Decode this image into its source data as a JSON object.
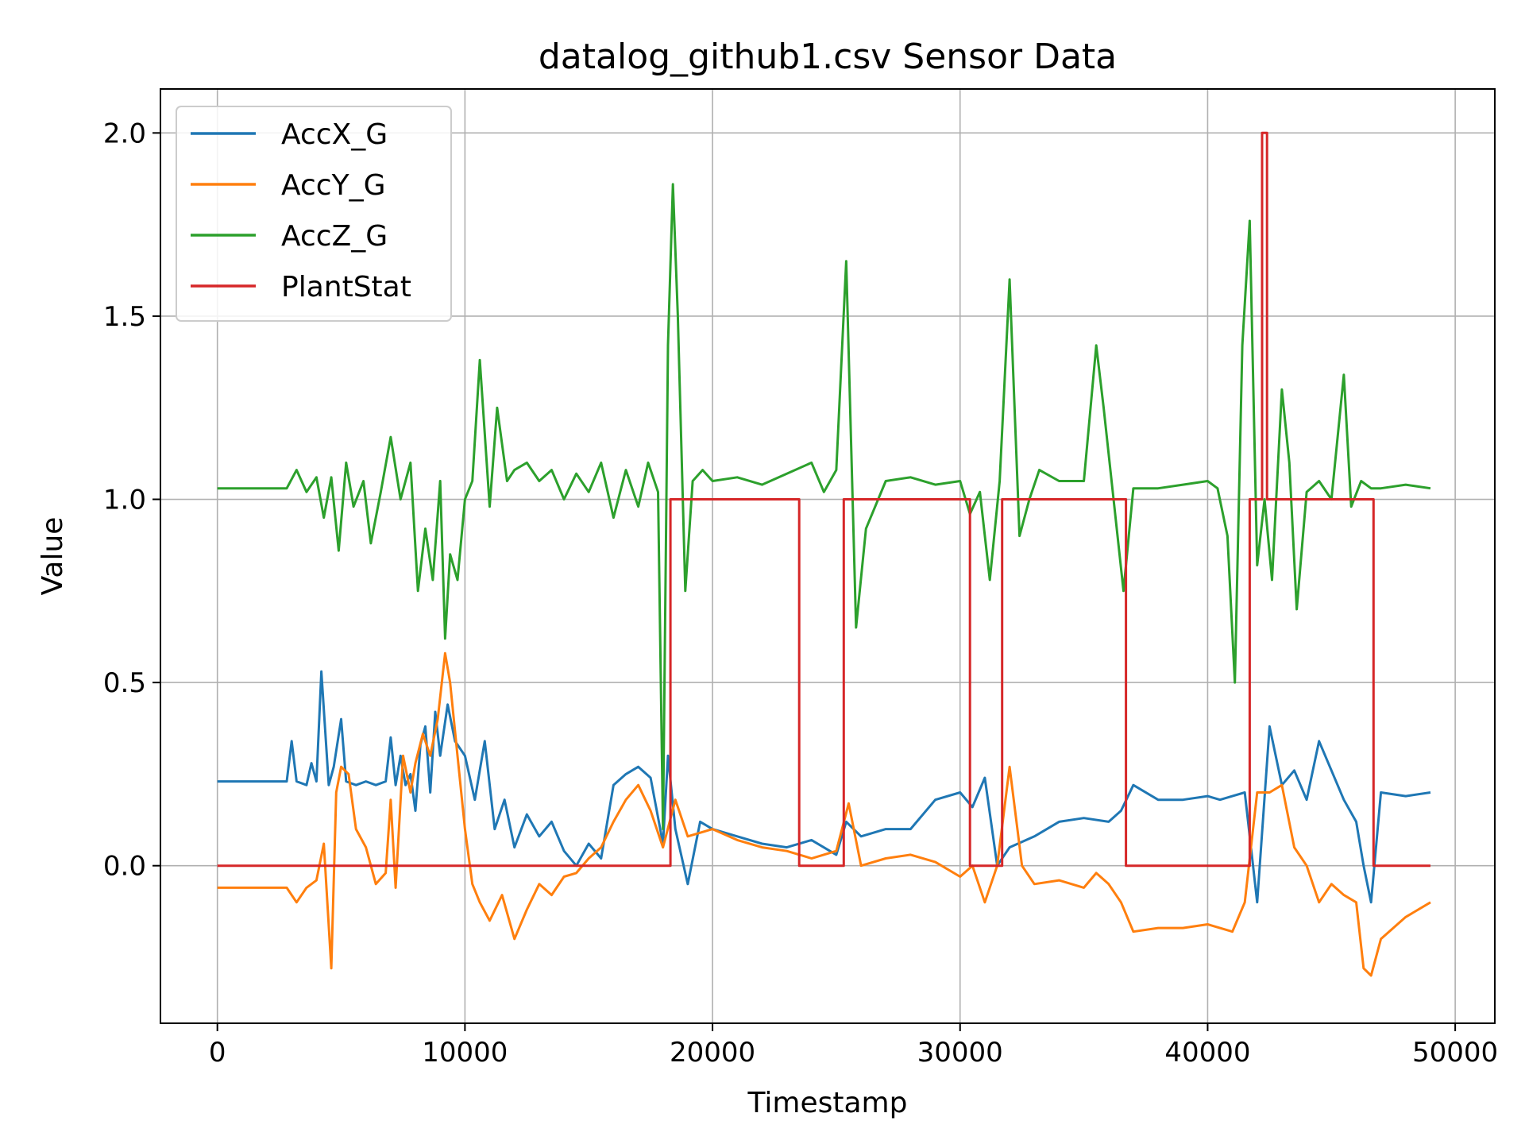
{
  "chart_data": {
    "type": "line",
    "title": "datalog_github1.csv Sensor Data",
    "xlabel": "Timestamp",
    "ylabel": "Value",
    "xlim": [
      -2300,
      51600
    ],
    "ylim": [
      -0.43,
      2.12
    ],
    "xticks": [
      0,
      10000,
      20000,
      30000,
      40000,
      50000
    ],
    "xtick_labels": [
      "0",
      "10000",
      "20000",
      "30000",
      "40000",
      "50000"
    ],
    "yticks": [
      0.0,
      0.5,
      1.0,
      1.5,
      2.0
    ],
    "ytick_labels": [
      "0.0",
      "0.5",
      "1.0",
      "1.5",
      "2.0"
    ],
    "grid": true,
    "legend_position": "upper-left",
    "series": [
      {
        "name": "AccX_G",
        "color": "#1f77b4",
        "x": [
          0,
          1000,
          2000,
          2800,
          3000,
          3200,
          3600,
          3800,
          4000,
          4200,
          4500,
          4700,
          5000,
          5200,
          5600,
          6000,
          6400,
          6800,
          7000,
          7200,
          7400,
          7600,
          7800,
          8000,
          8200,
          8400,
          8600,
          8800,
          9000,
          9300,
          9600,
          10000,
          10400,
          10800,
          11200,
          11600,
          12000,
          12500,
          13000,
          13500,
          14000,
          14500,
          15000,
          15500,
          16000,
          16500,
          17000,
          17500,
          18000,
          18200,
          18500,
          19000,
          19500,
          20000,
          21000,
          22000,
          23000,
          24000,
          25000,
          25400,
          26000,
          27000,
          28000,
          29000,
          30000,
          30500,
          31000,
          31500,
          32000,
          33000,
          34000,
          35000,
          36000,
          36500,
          37000,
          38000,
          39000,
          40000,
          40500,
          41000,
          41500,
          42000,
          42500,
          43000,
          43500,
          44000,
          44500,
          45000,
          45500,
          46000,
          46300,
          46600,
          47000,
          48000,
          49000
        ],
        "y": [
          0.23,
          0.23,
          0.23,
          0.23,
          0.34,
          0.23,
          0.22,
          0.28,
          0.23,
          0.53,
          0.22,
          0.27,
          0.4,
          0.23,
          0.22,
          0.23,
          0.22,
          0.23,
          0.35,
          0.22,
          0.3,
          0.22,
          0.25,
          0.15,
          0.33,
          0.38,
          0.2,
          0.42,
          0.3,
          0.44,
          0.34,
          0.3,
          0.18,
          0.34,
          0.1,
          0.18,
          0.05,
          0.14,
          0.08,
          0.12,
          0.04,
          0.0,
          0.06,
          0.02,
          0.22,
          0.25,
          0.27,
          0.24,
          0.06,
          0.3,
          0.1,
          -0.05,
          0.12,
          0.1,
          0.08,
          0.06,
          0.05,
          0.07,
          0.03,
          0.12,
          0.08,
          0.1,
          0.1,
          0.18,
          0.2,
          0.16,
          0.24,
          0.0,
          0.05,
          0.08,
          0.12,
          0.13,
          0.12,
          0.15,
          0.22,
          0.18,
          0.18,
          0.19,
          0.18,
          0.19,
          0.2,
          -0.1,
          0.38,
          0.22,
          0.26,
          0.18,
          0.34,
          0.26,
          0.18,
          0.12,
          0.0,
          -0.1,
          0.2,
          0.19,
          0.2
        ]
      },
      {
        "name": "AccY_G",
        "color": "#ff7f0e",
        "x": [
          0,
          1000,
          2000,
          2800,
          3200,
          3600,
          4000,
          4300,
          4600,
          4800,
          5000,
          5300,
          5600,
          6000,
          6400,
          6800,
          7000,
          7200,
          7500,
          7800,
          8000,
          8300,
          8600,
          8900,
          9200,
          9400,
          9700,
          10000,
          10300,
          10600,
          11000,
          11500,
          12000,
          12500,
          13000,
          13500,
          14000,
          14500,
          15000,
          15500,
          16000,
          16500,
          17000,
          17500,
          18000,
          18500,
          19000,
          20000,
          21000,
          22000,
          23000,
          24000,
          25000,
          25500,
          26000,
          27000,
          28000,
          29000,
          30000,
          30500,
          31000,
          31500,
          32000,
          32500,
          33000,
          34000,
          35000,
          35500,
          36000,
          36500,
          37000,
          38000,
          39000,
          40000,
          41000,
          41500,
          42000,
          42500,
          43000,
          43500,
          44000,
          44500,
          45000,
          45500,
          46000,
          46300,
          46600,
          47000,
          48000,
          49000
        ],
        "y": [
          -0.06,
          -0.06,
          -0.06,
          -0.06,
          -0.1,
          -0.06,
          -0.04,
          0.06,
          -0.28,
          0.2,
          0.27,
          0.25,
          0.1,
          0.05,
          -0.05,
          -0.02,
          0.18,
          -0.06,
          0.3,
          0.2,
          0.28,
          0.36,
          0.3,
          0.4,
          0.58,
          0.5,
          0.3,
          0.1,
          -0.05,
          -0.1,
          -0.15,
          -0.08,
          -0.2,
          -0.12,
          -0.05,
          -0.08,
          -0.03,
          -0.02,
          0.02,
          0.05,
          0.12,
          0.18,
          0.22,
          0.15,
          0.05,
          0.18,
          0.08,
          0.1,
          0.07,
          0.05,
          0.04,
          0.02,
          0.04,
          0.17,
          0.0,
          0.02,
          0.03,
          0.01,
          -0.03,
          0.0,
          -0.1,
          0.0,
          0.27,
          0.0,
          -0.05,
          -0.04,
          -0.06,
          -0.02,
          -0.05,
          -0.1,
          -0.18,
          -0.17,
          -0.17,
          -0.16,
          -0.18,
          -0.1,
          0.2,
          0.2,
          0.22,
          0.05,
          0.0,
          -0.1,
          -0.05,
          -0.08,
          -0.1,
          -0.28,
          -0.3,
          -0.2,
          -0.14,
          -0.1
        ]
      },
      {
        "name": "AccZ_G",
        "color": "#2ca02c",
        "x": [
          0,
          1000,
          2000,
          2800,
          3200,
          3600,
          4000,
          4300,
          4600,
          4900,
          5200,
          5500,
          5900,
          6200,
          6600,
          7000,
          7400,
          7800,
          8100,
          8400,
          8700,
          9000,
          9200,
          9400,
          9700,
          10000,
          10300,
          10600,
          11000,
          11300,
          11700,
          12000,
          12500,
          13000,
          13500,
          14000,
          14500,
          15000,
          15500,
          16000,
          16500,
          17000,
          17400,
          17800,
          18000,
          18200,
          18400,
          18600,
          18900,
          19200,
          19600,
          20000,
          21000,
          22000,
          23000,
          24000,
          24500,
          25000,
          25400,
          25800,
          26200,
          27000,
          28000,
          29000,
          30000,
          30400,
          30800,
          31200,
          31600,
          32000,
          32400,
          32800,
          33200,
          34000,
          35000,
          35500,
          35800,
          36200,
          36600,
          37000,
          38000,
          39000,
          40000,
          40400,
          40800,
          41100,
          41400,
          41700,
          42000,
          42300,
          42600,
          43000,
          43300,
          43600,
          44000,
          44500,
          45000,
          45500,
          45800,
          46200,
          46600,
          47000,
          48000,
          49000
        ],
        "y": [
          1.03,
          1.03,
          1.03,
          1.03,
          1.08,
          1.02,
          1.06,
          0.95,
          1.06,
          0.86,
          1.1,
          0.98,
          1.05,
          0.88,
          1.02,
          1.17,
          1.0,
          1.1,
          0.75,
          0.92,
          0.78,
          1.05,
          0.62,
          0.85,
          0.78,
          1.0,
          1.05,
          1.38,
          0.98,
          1.25,
          1.05,
          1.08,
          1.1,
          1.05,
          1.08,
          1.0,
          1.07,
          1.02,
          1.1,
          0.95,
          1.08,
          0.98,
          1.1,
          1.02,
          0.1,
          1.42,
          1.86,
          1.5,
          0.75,
          1.05,
          1.08,
          1.05,
          1.06,
          1.04,
          1.07,
          1.1,
          1.02,
          1.08,
          1.65,
          0.65,
          0.92,
          1.05,
          1.06,
          1.04,
          1.05,
          0.96,
          1.02,
          0.78,
          1.05,
          1.6,
          0.9,
          1.0,
          1.08,
          1.05,
          1.05,
          1.42,
          1.25,
          1.0,
          0.75,
          1.03,
          1.03,
          1.04,
          1.05,
          1.03,
          0.9,
          0.5,
          1.42,
          1.76,
          0.82,
          1.0,
          0.78,
          1.3,
          1.1,
          0.7,
          1.02,
          1.05,
          1.0,
          1.34,
          0.98,
          1.05,
          1.03,
          1.03,
          1.04,
          1.03
        ]
      },
      {
        "name": "PlantStat",
        "color": "#d62728",
        "x": [
          0,
          18300,
          18300,
          23500,
          23500,
          25300,
          25300,
          30400,
          30400,
          31700,
          31700,
          36700,
          36700,
          41700,
          41700,
          42200,
          42200,
          42400,
          42400,
          46700,
          46700,
          49000
        ],
        "y": [
          0,
          0,
          1,
          1,
          0,
          0,
          1,
          1,
          0,
          0,
          1,
          1,
          0,
          0,
          1,
          1,
          2,
          2,
          1,
          1,
          0,
          0
        ]
      }
    ]
  }
}
